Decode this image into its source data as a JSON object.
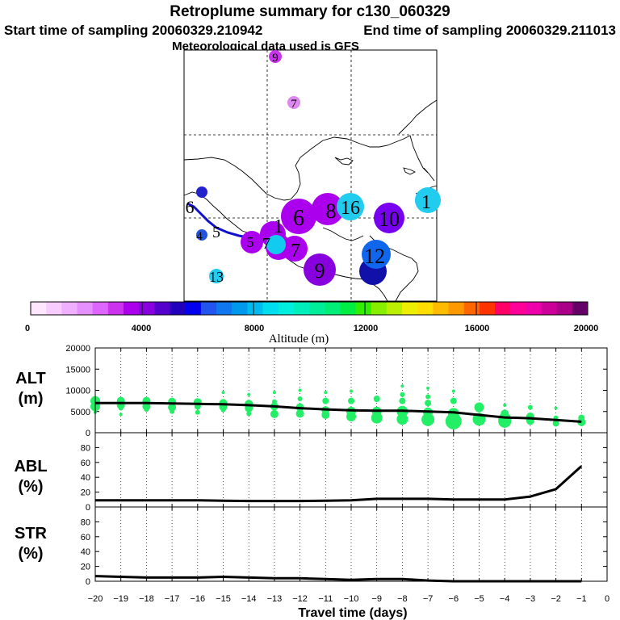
{
  "header": {
    "title": "Retroplume summary for c130_060329",
    "start_label": "Start time of sampling 20060329.210942",
    "end_label": "End time of sampling 20060329.211013",
    "met_label": "Meteorological data used is GFS"
  },
  "map": {
    "markers": [
      {
        "label": "9",
        "color": "#cc33ee"
      },
      {
        "label": "7",
        "color": "#dd88ee"
      },
      {
        "label": "6",
        "color": "#2222cc"
      },
      {
        "label": "6",
        "color": "#aa00ee"
      },
      {
        "label": "4",
        "color": "#2255dd"
      },
      {
        "label": "5",
        "color": "#cc33ee"
      },
      {
        "label": "5",
        "color": "#aa00ee"
      },
      {
        "label": "7",
        "color": "#aa00ee"
      },
      {
        "label": "1",
        "color": "#aa00ee"
      },
      {
        "label": "7",
        "color": "#11ccee"
      },
      {
        "label": "8",
        "color": "#aa00ee"
      },
      {
        "label": "16",
        "color": "#22ccee"
      },
      {
        "label": "10",
        "color": "#7700ee"
      },
      {
        "label": "1",
        "color": "#22ccee"
      },
      {
        "label": "9",
        "color": "#8800dd"
      },
      {
        "label": "12",
        "color": "#1166ee"
      },
      {
        "label": "13",
        "color": "#22ccee"
      }
    ]
  },
  "colorbar": {
    "title": "Altitude (m)",
    "tick_labels": [
      "0",
      "4000",
      "8000",
      "12000",
      "16000",
      "20000"
    ],
    "colors": [
      "#ffe6ff",
      "#f8ccff",
      "#f0b0ff",
      "#e690ff",
      "#dd66ff",
      "#cc33ee",
      "#aa00ee",
      "#8800dd",
      "#5500cc",
      "#2200bb",
      "#0000ee",
      "#2255ee",
      "#1177ee",
      "#0099ee",
      "#00bbee",
      "#00ddee",
      "#00eedd",
      "#00eebb",
      "#00ee99",
      "#00ee77",
      "#00ee44",
      "#33ee00",
      "#88ee00",
      "#bbee00",
      "#eeee00",
      "#ffdd00",
      "#ffbb00",
      "#ff9900",
      "#ff6600",
      "#ff3300",
      "#ff0066",
      "#ff0099",
      "#ee00aa",
      "#cc0099",
      "#aa0088",
      "#660066"
    ]
  },
  "chart_data": [
    {
      "type": "scatter",
      "title": "ALT",
      "ylabel": "ALT (m)",
      "ylabel_line1": "ALT",
      "ylabel_line2": "(m)",
      "ylim": [
        0,
        20000
      ],
      "yticks": [
        "0",
        "5000",
        "10000",
        "15000",
        "20000"
      ],
      "point_color": "#22ee66",
      "series": [
        {
          "name": "median altitude",
          "x": [
            -20,
            -19,
            -18,
            -17,
            -16,
            -15,
            -14,
            -13,
            -12,
            -11,
            -10,
            -9,
            -8,
            -7,
            -6,
            -5,
            -4,
            -3,
            -2,
            -1
          ],
          "values": [
            7000,
            7000,
            7000,
            6900,
            6800,
            6700,
            6500,
            6200,
            5800,
            5500,
            5300,
            5200,
            5200,
            5000,
            4800,
            4200,
            3600,
            3400,
            3000,
            2600
          ]
        }
      ],
      "points": [
        {
          "x": -20,
          "y": 7500,
          "r": 6
        },
        {
          "x": -20,
          "y": 6200,
          "r": 6
        },
        {
          "x": -20,
          "y": 4800,
          "r": 2
        },
        {
          "x": -19,
          "y": 7500,
          "r": 5
        },
        {
          "x": -19,
          "y": 6500,
          "r": 5
        },
        {
          "x": -19,
          "y": 5800,
          "r": 3
        },
        {
          "x": -19,
          "y": 4300,
          "r": 2
        },
        {
          "x": -18,
          "y": 7500,
          "r": 5
        },
        {
          "x": -18,
          "y": 6200,
          "r": 5
        },
        {
          "x": -18,
          "y": 5500,
          "r": 3
        },
        {
          "x": -17,
          "y": 7300,
          "r": 5
        },
        {
          "x": -17,
          "y": 6000,
          "r": 5
        },
        {
          "x": -17,
          "y": 5000,
          "r": 3
        },
        {
          "x": -16,
          "y": 7200,
          "r": 5
        },
        {
          "x": -16,
          "y": 6200,
          "r": 4
        },
        {
          "x": -16,
          "y": 4800,
          "r": 3
        },
        {
          "x": -15,
          "y": 9500,
          "r": 2
        },
        {
          "x": -15,
          "y": 7000,
          "r": 5
        },
        {
          "x": -15,
          "y": 6100,
          "r": 5
        },
        {
          "x": -15,
          "y": 5400,
          "r": 3
        },
        {
          "x": -14,
          "y": 9000,
          "r": 2
        },
        {
          "x": -14,
          "y": 6800,
          "r": 5
        },
        {
          "x": -14,
          "y": 5800,
          "r": 5
        },
        {
          "x": -14,
          "y": 4500,
          "r": 3
        },
        {
          "x": -13,
          "y": 9500,
          "r": 2
        },
        {
          "x": -13,
          "y": 7300,
          "r": 3
        },
        {
          "x": -13,
          "y": 6200,
          "r": 5
        },
        {
          "x": -13,
          "y": 4400,
          "r": 5
        },
        {
          "x": -12,
          "y": 10000,
          "r": 2
        },
        {
          "x": -12,
          "y": 8000,
          "r": 3
        },
        {
          "x": -12,
          "y": 6000,
          "r": 5
        },
        {
          "x": -12,
          "y": 4500,
          "r": 5
        },
        {
          "x": -11,
          "y": 9500,
          "r": 2
        },
        {
          "x": -11,
          "y": 7500,
          "r": 4
        },
        {
          "x": -11,
          "y": 5300,
          "r": 5
        },
        {
          "x": -11,
          "y": 4200,
          "r": 5
        },
        {
          "x": -10,
          "y": 9800,
          "r": 2
        },
        {
          "x": -10,
          "y": 7500,
          "r": 4
        },
        {
          "x": -10,
          "y": 5000,
          "r": 6
        },
        {
          "x": -10,
          "y": 3800,
          "r": 6
        },
        {
          "x": -9,
          "y": 8000,
          "r": 4
        },
        {
          "x": -9,
          "y": 5000,
          "r": 6
        },
        {
          "x": -9,
          "y": 3500,
          "r": 7
        },
        {
          "x": -8,
          "y": 11000,
          "r": 2
        },
        {
          "x": -8,
          "y": 9000,
          "r": 3
        },
        {
          "x": -8,
          "y": 7500,
          "r": 4
        },
        {
          "x": -8,
          "y": 5000,
          "r": 7
        },
        {
          "x": -8,
          "y": 3200,
          "r": 7
        },
        {
          "x": -7,
          "y": 10500,
          "r": 2
        },
        {
          "x": -7,
          "y": 8500,
          "r": 3
        },
        {
          "x": -7,
          "y": 7000,
          "r": 4
        },
        {
          "x": -7,
          "y": 4800,
          "r": 6
        },
        {
          "x": -7,
          "y": 3100,
          "r": 8
        },
        {
          "x": -6,
          "y": 9800,
          "r": 2
        },
        {
          "x": -6,
          "y": 7500,
          "r": 4
        },
        {
          "x": -6,
          "y": 4500,
          "r": 7
        },
        {
          "x": -6,
          "y": 2700,
          "r": 10
        },
        {
          "x": -5,
          "y": 6000,
          "r": 6
        },
        {
          "x": -5,
          "y": 3200,
          "r": 8
        },
        {
          "x": -4,
          "y": 6500,
          "r": 2
        },
        {
          "x": -4,
          "y": 4500,
          "r": 5
        },
        {
          "x": -4,
          "y": 3200,
          "r": 8
        },
        {
          "x": -4,
          "y": 2700,
          "r": 8
        },
        {
          "x": -3,
          "y": 6000,
          "r": 3
        },
        {
          "x": -3,
          "y": 3800,
          "r": 5
        },
        {
          "x": -3,
          "y": 2800,
          "r": 5
        },
        {
          "x": -2,
          "y": 5800,
          "r": 2
        },
        {
          "x": -2,
          "y": 3500,
          "r": 3
        },
        {
          "x": -2,
          "y": 2200,
          "r": 4
        },
        {
          "x": -1,
          "y": 3500,
          "r": 4
        },
        {
          "x": -1,
          "y": 2500,
          "r": 5
        }
      ]
    },
    {
      "type": "line",
      "title": "ABL",
      "ylabel": "ABL (%)",
      "ylabel_line1": "ABL",
      "ylabel_line2": "(%)",
      "ylim": [
        0,
        100
      ],
      "yticks": [
        "0",
        "20",
        "40",
        "60",
        "80"
      ],
      "series": [
        {
          "name": "ABL",
          "x": [
            -20,
            -19,
            -18,
            -17,
            -16,
            -15,
            -14,
            -13,
            -12,
            -11,
            -10,
            -9,
            -8,
            -7,
            -6,
            -5,
            -4,
            -3,
            -2,
            -1
          ],
          "values": [
            9,
            9,
            9,
            9,
            9,
            8.5,
            8,
            8,
            8,
            8.5,
            9,
            11,
            11,
            11,
            10,
            10,
            10,
            14,
            24,
            55
          ]
        }
      ]
    },
    {
      "type": "line",
      "title": "STR",
      "ylabel": "STR (%)",
      "ylabel_line1": "STR",
      "ylabel_line2": "(%)",
      "ylim": [
        0,
        100
      ],
      "yticks": [
        "0",
        "20",
        "40",
        "60",
        "80"
      ],
      "xlabel": "Travel time (days)",
      "xticks": [
        "−20",
        "−19",
        "−18",
        "−17",
        "−16",
        "−15",
        "−14",
        "−13",
        "−12",
        "−11",
        "−10",
        "−9",
        "−8",
        "−7",
        "−6",
        "−5",
        "−4",
        "−3",
        "−2",
        "−1",
        "0"
      ],
      "series": [
        {
          "name": "STR",
          "x": [
            -20,
            -19,
            -18,
            -17,
            -16,
            -15,
            -14,
            -13,
            -12,
            -11,
            -10,
            -9,
            -8,
            -7,
            -6,
            -5,
            -4,
            -3,
            -2,
            -1
          ],
          "values": [
            7,
            6,
            5,
            5,
            5,
            6,
            5,
            4,
            4,
            3,
            2,
            3,
            3,
            1,
            0,
            0,
            0,
            0,
            0,
            0
          ]
        }
      ]
    }
  ]
}
